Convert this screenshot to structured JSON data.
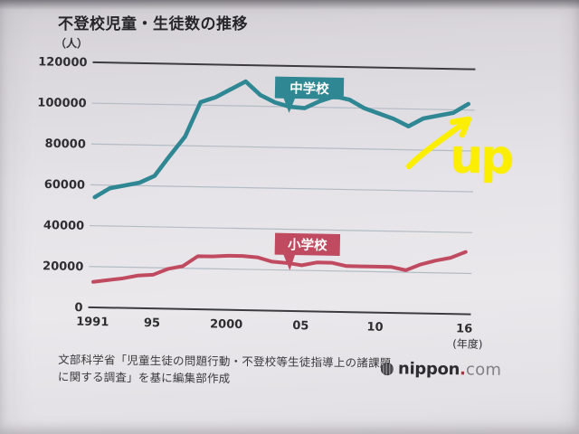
{
  "chart_data": {
    "type": "line",
    "title": "不登校児童・生徒数の推移",
    "unit_label": "（人）",
    "x_axis_label": "(年度)",
    "grid": "horizontal",
    "legend": "inline-callout-labels",
    "ylim": [
      0,
      120000
    ],
    "y_ticks": [
      0,
      20000,
      40000,
      60000,
      80000,
      100000,
      120000
    ],
    "x_ticks": [
      {
        "year": 1991,
        "label": "1991"
      },
      {
        "year": 1995,
        "label": "95"
      },
      {
        "year": 2000,
        "label": "2000"
      },
      {
        "year": 2005,
        "label": "05"
      },
      {
        "year": 2010,
        "label": "10"
      },
      {
        "year": 2016,
        "label": "16"
      }
    ],
    "years": [
      1991,
      1992,
      1993,
      1994,
      1995,
      1996,
      1997,
      1998,
      1999,
      2000,
      2001,
      2002,
      2003,
      2004,
      2005,
      2006,
      2007,
      2008,
      2009,
      2010,
      2011,
      2012,
      2013,
      2014,
      2015,
      2016
    ],
    "series": [
      {
        "name": "中学校",
        "color": "#2e8793",
        "values": [
          54000,
          58500,
          60000,
          61500,
          65000,
          75000,
          84500,
          101500,
          104000,
          108000,
          112000,
          105500,
          102000,
          100000,
          99500,
          103000,
          105500,
          104000,
          100000,
          97500,
          95000,
          91500,
          95500,
          97000,
          98500,
          103000
        ]
      },
      {
        "name": "小学校",
        "color": "#c04a60",
        "values": [
          12500,
          13500,
          14500,
          16000,
          16500,
          19500,
          21000,
          26000,
          26000,
          26500,
          26500,
          26000,
          24000,
          23500,
          22500,
          24000,
          24000,
          22500,
          22500,
          22500,
          22500,
          21000,
          24000,
          26000,
          27500,
          30500
        ]
      }
    ]
  },
  "annotation": {
    "text": "up",
    "color": "#fbee00"
  },
  "source": {
    "line1": "文部科学省「児童生徒の問題行動・不登校等生徒指導上の諸課題",
    "line2": "に関する調査」を基に編集部作成"
  },
  "logo": {
    "name": "nippon",
    "dot": ".",
    "tld": "com"
  }
}
